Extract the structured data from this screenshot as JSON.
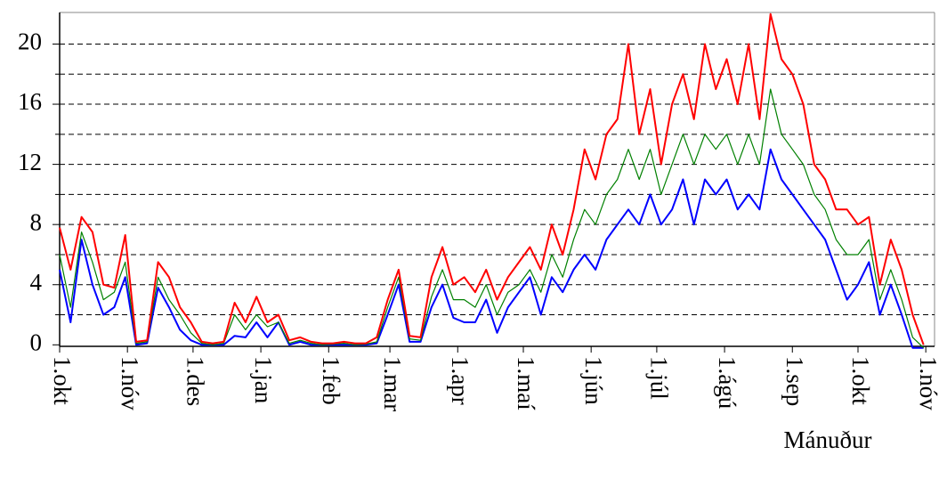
{
  "chart_data": {
    "type": "line",
    "x_label": "Mánuður",
    "xlim": [
      0,
      400
    ],
    "xticks": [
      {
        "value": 0,
        "label": "1.okt"
      },
      {
        "value": 31,
        "label": "1.nóv"
      },
      {
        "value": 61,
        "label": "1.des"
      },
      {
        "value": 92,
        "label": "1.jan"
      },
      {
        "value": 123,
        "label": "1.feb"
      },
      {
        "value": 151,
        "label": "1.mar"
      },
      {
        "value": 182,
        "label": "1.apr"
      },
      {
        "value": 212,
        "label": "1.maí"
      },
      {
        "value": 243,
        "label": "1.jún"
      },
      {
        "value": 273,
        "label": "1.júl"
      },
      {
        "value": 304,
        "label": "1.ágú"
      },
      {
        "value": 335,
        "label": "1.sep"
      },
      {
        "value": 365,
        "label": "1.okt"
      },
      {
        "value": 396,
        "label": "1.nóv"
      }
    ],
    "ylim": [
      -0.1,
      22.1
    ],
    "yticks": [
      0,
      4,
      8,
      12,
      16,
      20
    ],
    "minor_yticks": [
      2,
      6,
      10,
      14,
      18
    ],
    "grid": true,
    "x": [
      0,
      5,
      10,
      15,
      20,
      25,
      30,
      35,
      40,
      45,
      50,
      55,
      60,
      65,
      70,
      75,
      80,
      85,
      90,
      95,
      100,
      105,
      110,
      115,
      120,
      125,
      130,
      135,
      140,
      145,
      150,
      155,
      160,
      165,
      170,
      175,
      180,
      185,
      190,
      195,
      200,
      205,
      210,
      215,
      220,
      225,
      230,
      235,
      240,
      245,
      250,
      255,
      260,
      265,
      270,
      275,
      280,
      285,
      290,
      295,
      300,
      305,
      310,
      315,
      320,
      325,
      330,
      335,
      340,
      345,
      350,
      355,
      360,
      365,
      370,
      375,
      380,
      385,
      390,
      395
    ],
    "series": [
      {
        "color": "#0000ff",
        "values": [
          5,
          1.5,
          7,
          4,
          2,
          2.5,
          4.5,
          0,
          0.1,
          3.8,
          2.5,
          1,
          0.3,
          0,
          0,
          0,
          0.6,
          0.5,
          1.5,
          0.5,
          1.5,
          0,
          0.2,
          0,
          0,
          0,
          0,
          0,
          0,
          0.1,
          2,
          4,
          0.2,
          0.2,
          2.5,
          4,
          1.8,
          1.5,
          1.5,
          3,
          0.8,
          2.5,
          3.5,
          4.5,
          2,
          4.5,
          3.5,
          5,
          6,
          5,
          7,
          8,
          9,
          8,
          10,
          8,
          9,
          11,
          8,
          11,
          10,
          11,
          9,
          10,
          9,
          13,
          11,
          10,
          9,
          8,
          7,
          5,
          3,
          4,
          5.5,
          2,
          4,
          2,
          -0.2,
          -0.2
        ]
      },
      {
        "color": "#008000",
        "values": [
          6,
          2.5,
          7.5,
          5.5,
          3,
          3.5,
          5.5,
          0.1,
          0.2,
          4.5,
          3,
          2,
          0.8,
          0.1,
          0,
          0.1,
          2,
          1,
          2,
          1.2,
          1.5,
          0.1,
          0.3,
          0.1,
          0,
          0.05,
          0.1,
          0,
          0.05,
          0.2,
          2.5,
          4.5,
          0.4,
          0.3,
          3.2,
          5,
          3,
          3,
          2.5,
          4,
          2,
          3.5,
          4,
          5,
          3.5,
          6,
          4.5,
          7,
          9,
          8,
          10,
          11,
          13,
          11,
          13,
          10,
          12,
          14,
          12,
          14,
          13,
          14,
          12,
          14,
          12,
          17,
          14,
          13,
          12,
          10,
          9,
          7,
          6,
          6,
          7,
          3,
          5,
          3,
          0.5,
          -0.2
        ]
      },
      {
        "color": "#ff0000",
        "values": [
          7.8,
          5,
          8.5,
          7.5,
          4,
          3.8,
          7.3,
          0.2,
          0.3,
          5.5,
          4.5,
          2.5,
          1.5,
          0.2,
          0.1,
          0.2,
          2.8,
          1.5,
          3.2,
          1.5,
          2,
          0.3,
          0.5,
          0.2,
          0.1,
          0.1,
          0.2,
          0.1,
          0.1,
          0.5,
          3,
          5,
          0.6,
          0.5,
          4.5,
          6.5,
          4,
          4.5,
          3.5,
          5,
          3,
          4.5,
          5.5,
          6.5,
          5,
          8,
          6,
          9,
          13,
          11,
          14,
          15,
          20,
          14,
          17,
          12,
          16,
          18,
          15,
          20,
          17,
          19,
          16,
          20,
          15,
          22,
          19,
          18,
          16,
          12,
          11,
          9,
          9,
          8,
          8.5,
          4,
          7,
          5,
          2,
          0
        ]
      }
    ]
  }
}
